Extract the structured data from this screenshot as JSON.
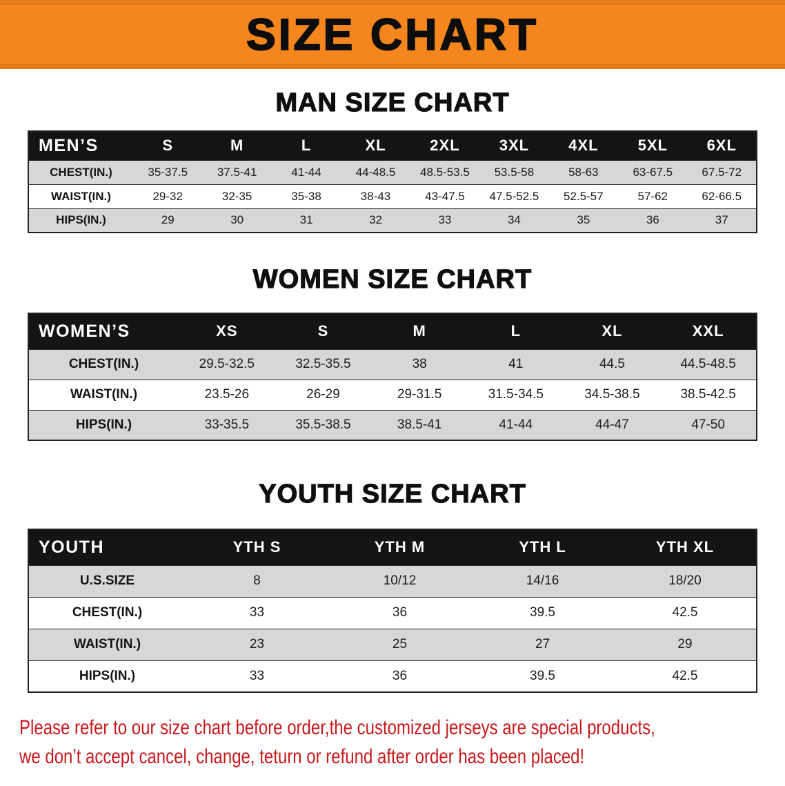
{
  "banner": {
    "title": "SIZE CHART"
  },
  "colors": {
    "banner_bg": "#f5861e",
    "header_bg": "#141414",
    "stripe": "#d7d7d7",
    "disclaimer_text": "#c8181b"
  },
  "chart_data": [
    {
      "type": "table",
      "title": "MAN SIZE CHART",
      "columns": [
        "MEN’S",
        "S",
        "M",
        "L",
        "XL",
        "2XL",
        "3XL",
        "4XL",
        "5XL",
        "6XL"
      ],
      "rows": [
        [
          "CHEST(IN.)",
          "35-37.5",
          "37.5-41",
          "41-44",
          "44-48.5",
          "48.5-53.5",
          "53.5-58",
          "58-63",
          "63-67.5",
          "67.5-72"
        ],
        [
          "WAIST(IN.)",
          "29-32",
          "32-35",
          "35-38",
          "38-43",
          "43-47.5",
          "47.5-52.5",
          "52.5-57",
          "57-62",
          "62-66.5"
        ],
        [
          "HIPS(IN.)",
          "29",
          "30",
          "31",
          "32",
          "33",
          "34",
          "35",
          "36",
          "37"
        ]
      ]
    },
    {
      "type": "table",
      "title": "WOMEN SIZE CHART",
      "columns": [
        "WOMEN’S",
        "XS",
        "S",
        "M",
        "L",
        "XL",
        "XXL"
      ],
      "rows": [
        [
          "CHEST(IN.)",
          "29.5-32.5",
          "32.5-35.5",
          "38",
          "41",
          "44.5",
          "44.5-48.5"
        ],
        [
          "WAIST(IN.)",
          "23.5-26",
          "26-29",
          "29-31.5",
          "31.5-34.5",
          "34.5-38.5",
          "38.5-42.5"
        ],
        [
          "HIPS(IN.)",
          "33-35.5",
          "35.5-38.5",
          "38.5-41",
          "41-44",
          "44-47",
          "47-50"
        ]
      ]
    },
    {
      "type": "table",
      "title": "YOUTH SIZE CHART",
      "columns": [
        "YOUTH",
        "YTH S",
        "YTH M",
        "YTH L",
        "YTH XL"
      ],
      "rows": [
        [
          "U.S.SIZE",
          "8",
          "10/12",
          "14/16",
          "18/20"
        ],
        [
          "CHEST(IN.)",
          "33",
          "36",
          "39.5",
          "42.5"
        ],
        [
          "WAIST(IN.)",
          "23",
          "25",
          "27",
          "29"
        ],
        [
          "HIPS(IN.)",
          "33",
          "36",
          "39.5",
          "42.5"
        ]
      ]
    }
  ],
  "disclaimer": {
    "line1": "Please refer to our size chart before order,the customized jerseys are special products,",
    "line2": "we don’t accept cancel, change, teturn or refund after order has been placed!"
  }
}
